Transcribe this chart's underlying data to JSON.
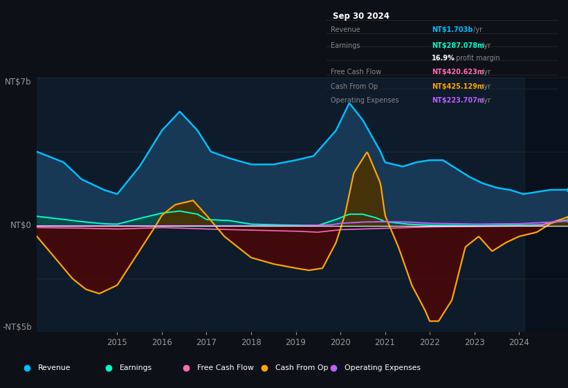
{
  "bg_color": "#0d1117",
  "plot_bg_color": "#0d1b2a",
  "plot_bg_right": "#0a1520",
  "ylim": [
    -5000000000.0,
    7000000000.0
  ],
  "xlim": [
    2013.2,
    2025.1
  ],
  "revenue_color": "#00bfff",
  "earnings_color": "#00ffcc",
  "free_cash_flow_color": "#ff69b4",
  "cash_from_op_color": "#ffa500",
  "op_expenses_color": "#bf5fff",
  "revenue_fill": "#1a3d5c",
  "earnings_fill": "#005544",
  "cash_pos_fill": "#4a3200",
  "cash_neg_fill": "#4a0808",
  "text_color": "#999999",
  "zero_line_color": "#ffffff",
  "info_box_bg": "#050a0f",
  "info_box_border": "#2a2a2a",
  "legend_bg": "#0d1b2a",
  "legend_border": "#333333",
  "info_title": "Sep 30 2024",
  "legend_items": [
    {
      "label": "Revenue",
      "color": "#00bfff"
    },
    {
      "label": "Earnings",
      "color": "#00ffcc"
    },
    {
      "label": "Free Cash Flow",
      "color": "#ff69b4"
    },
    {
      "label": "Cash From Op",
      "color": "#ffa500"
    },
    {
      "label": "Operating Expenses",
      "color": "#bf5fff"
    }
  ],
  "year_ticks": [
    2015,
    2016,
    2017,
    2018,
    2019,
    2020,
    2021,
    2022,
    2023,
    2024
  ],
  "ylabel_top": "NT$7b",
  "ylabel_zero": "NT$0",
  "ylabel_bot": "-NT$5b"
}
